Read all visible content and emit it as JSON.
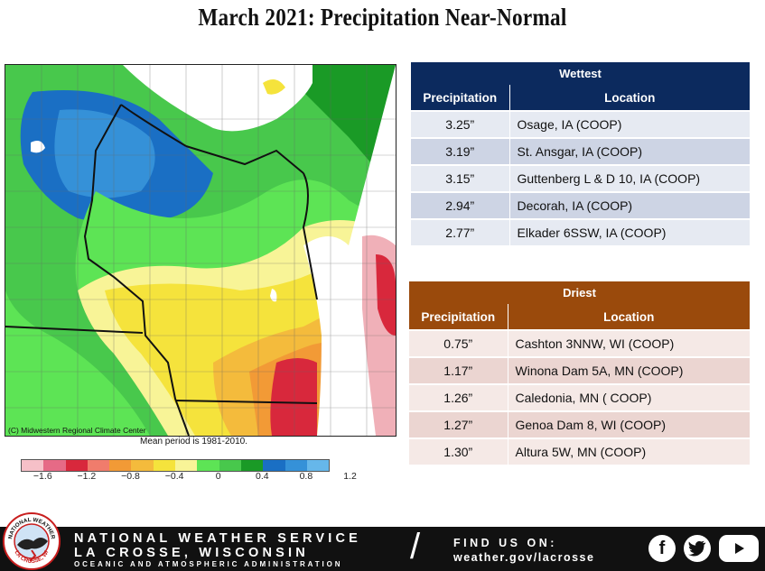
{
  "title": "March 2021:  Precipitation Near-Normal",
  "map": {
    "credit": "(C) Midwestern Regional Climate Center",
    "mean_period": "Mean period is 1981-2010.",
    "legend_colors": [
      "#f6c0c8",
      "#e66a86",
      "#d8283c",
      "#f07c6c",
      "#f29a36",
      "#f4bb3c",
      "#f5e33c",
      "#f8f497",
      "#5de455",
      "#48c84c",
      "#1a9a26",
      "#1a6fc4",
      "#3591d8",
      "#66b7ea"
    ],
    "legend_ticks": [
      "−1.6",
      "−1.2",
      "−0.8",
      "−0.4",
      "0",
      "0.4",
      "0.8",
      "1.2"
    ]
  },
  "wettest": {
    "title": "Wettest",
    "col_precip": "Precipitation",
    "col_location": "Location",
    "rows": [
      {
        "precip": "3.25”",
        "location": "Osage, IA (COOP)"
      },
      {
        "precip": "3.19”",
        "location": "St. Ansgar, IA (COOP)"
      },
      {
        "precip": "3.15”",
        "location": "Guttenberg L & D 10, IA (COOP)"
      },
      {
        "precip": "2.94”",
        "location": "Decorah, IA (COOP)"
      },
      {
        "precip": "2.77”",
        "location": "Elkader 6SSW, IA (COOP)"
      }
    ]
  },
  "driest": {
    "title": "Driest",
    "col_precip": "Precipitation",
    "col_location": "Location",
    "rows": [
      {
        "precip": "0.75”",
        "location": "Cashton 3NNW, WI (COOP)"
      },
      {
        "precip": "1.17”",
        "location": "Winona Dam 5A, MN (COOP)"
      },
      {
        "precip": "1.26”",
        "location": "Caledonia, MN ( COOP)"
      },
      {
        "precip": "1.27”",
        "location": "Genoa Dam 8, WI (COOP)"
      },
      {
        "precip": "1.30”",
        "location": "Altura 5W, MN (COOP)"
      }
    ]
  },
  "footer": {
    "line1": "NATIONAL WEATHER SERVICE",
    "line2": "LA CROSSE, WISCONSIN",
    "line3": "OCEANIC AND ATMOSPHERIC ADMINISTRATION",
    "find_us": "FIND US ON:",
    "website": "weather.gov/lacrosse",
    "logo_top_text": "NATIONAL WEATHER",
    "logo_bottom_text": "LA CROSSE, WI",
    "icons": [
      "facebook-icon",
      "twitter-icon",
      "youtube-icon"
    ]
  }
}
